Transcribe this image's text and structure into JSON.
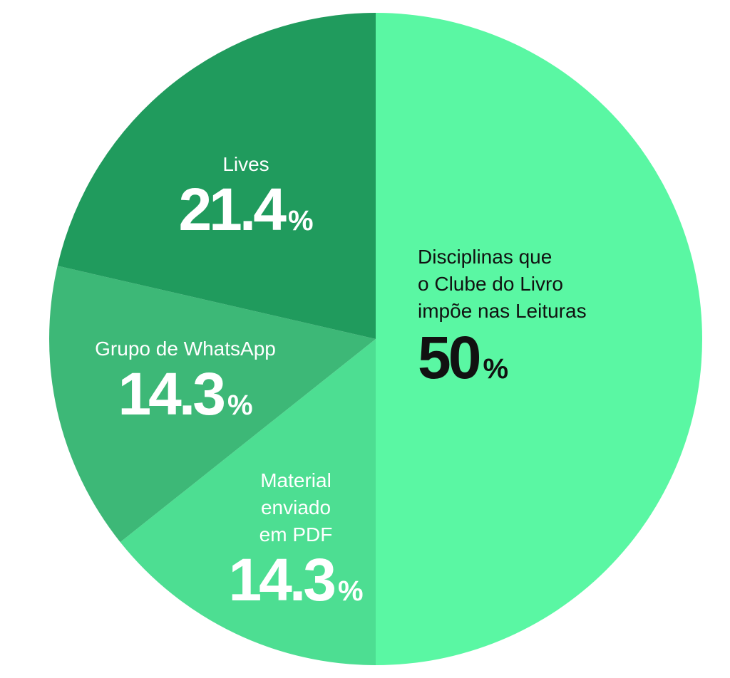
{
  "chart_data": {
    "type": "pie",
    "slices": [
      {
        "label_lines": [
          "Disciplinas que",
          "o Clube do Livro",
          "impõe nas Leituras"
        ],
        "value": 50,
        "value_text": "50",
        "color": "#5af7a3",
        "text_color": "#111111"
      },
      {
        "label_lines": [
          "Material",
          "enviado",
          "em PDF"
        ],
        "value": 14.3,
        "value_text": "14.3",
        "color": "#4dde92",
        "text_color": "#ffffff"
      },
      {
        "label_lines": [
          "Grupo de WhatsApp"
        ],
        "value": 14.3,
        "value_text": "14.3",
        "color": "#3db877",
        "text_color": "#ffffff"
      },
      {
        "label_lines": [
          "Lives"
        ],
        "value": 21.4,
        "value_text": "21.4",
        "color": "#209b5d",
        "text_color": "#ffffff"
      }
    ],
    "percent_symbol": "%",
    "start_angle": "top",
    "direction": "clockwise"
  }
}
